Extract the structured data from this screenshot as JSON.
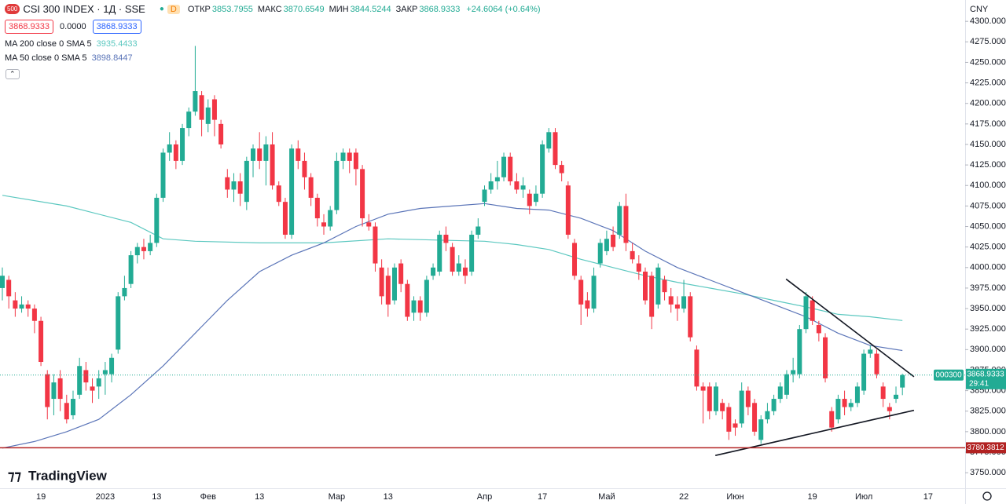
{
  "chart_data": {
    "type": "candlestick",
    "title": "CSI 300 INDEX · 1Д · SSE",
    "badge": "D",
    "ohlc_legend": [
      {
        "label": "ОТКР",
        "value": "3853.7955"
      },
      {
        "label": "МАКС",
        "value": "3870.6549"
      },
      {
        "label": "МИН",
        "value": "3844.5244"
      },
      {
        "label": "ЗАКР",
        "value": "3868.9333"
      }
    ],
    "change": "+24.6064 (+0.64%)",
    "boxes": [
      "3868.9333",
      "0.0000",
      "3868.9333"
    ],
    "currency": "CNY",
    "logo": "TradingView",
    "up_color": "#22ab94",
    "down_color": "#f23645",
    "grid": false,
    "ylim": [
      3731,
      4326
    ],
    "yticks": [
      {
        "value": 3750,
        "label": "3750.0000"
      },
      {
        "value": 3775,
        "label": "3775.0000"
      },
      {
        "value": 3800,
        "label": "3800.0000"
      },
      {
        "value": 3825,
        "label": "3825.0000"
      },
      {
        "value": 3850,
        "label": "3850.0000"
      },
      {
        "value": 3875,
        "label": "3875.0000"
      },
      {
        "value": 3900,
        "label": "3900.0000"
      },
      {
        "value": 3925,
        "label": "3925.0000"
      },
      {
        "value": 3950,
        "label": "3950.0000"
      },
      {
        "value": 3975,
        "label": "3975.0000"
      },
      {
        "value": 4000,
        "label": "4000.0000"
      },
      {
        "value": 4025,
        "label": "4025.0000"
      },
      {
        "value": 4050,
        "label": "4050.0000"
      },
      {
        "value": 4075,
        "label": "4075.0000"
      },
      {
        "value": 4100,
        "label": "4100.0000"
      },
      {
        "value": 4125,
        "label": "4125.0000"
      },
      {
        "value": 4150,
        "label": "4150.0000"
      },
      {
        "value": 4175,
        "label": "4175.0000"
      },
      {
        "value": 4200,
        "label": "4200.0000"
      },
      {
        "value": 4225,
        "label": "4225.0000"
      },
      {
        "value": 4250,
        "label": "4250.0000"
      },
      {
        "value": 4275,
        "label": "4275.0000"
      },
      {
        "value": 4300,
        "label": "4300.0000"
      }
    ],
    "categories": [
      null,
      null,
      null,
      null,
      null,
      null,
      "19",
      null,
      null,
      null,
      null,
      null,
      null,
      null,
      null,
      null,
      "2023",
      null,
      null,
      null,
      null,
      null,
      null,
      null,
      "13",
      null,
      null,
      null,
      null,
      null,
      null,
      null,
      "Фев",
      null,
      null,
      null,
      null,
      null,
      null,
      null,
      "13",
      null,
      null,
      null,
      null,
      null,
      null,
      null,
      null,
      null,
      null,
      null,
      "Мар",
      null,
      null,
      null,
      null,
      null,
      null,
      null,
      "13",
      null,
      null,
      null,
      null,
      null,
      null,
      null,
      null,
      null,
      null,
      null,
      null,
      null,
      null,
      "Апр",
      null,
      null,
      null,
      null,
      null,
      null,
      null,
      null,
      "17",
      null,
      null,
      null,
      null,
      null,
      null,
      null,
      null,
      null,
      "Май",
      null,
      null,
      null,
      null,
      null,
      null,
      null,
      null,
      null,
      null,
      null,
      "22",
      null,
      null,
      null,
      null,
      null,
      null,
      null,
      "Июн",
      null,
      null,
      null,
      null,
      null,
      null,
      null,
      null,
      null,
      null,
      null,
      "19",
      null,
      null,
      null,
      null,
      null,
      null,
      null,
      "Июл",
      null,
      null,
      null,
      null,
      null,
      null,
      null,
      null,
      null,
      "17"
    ],
    "open": [
      3975,
      3985,
      3960,
      3950,
      3955,
      3950,
      3935,
      3870,
      3840,
      3865,
      3835,
      3820,
      3845,
      3875,
      3855,
      3855,
      3870,
      3870,
      3900,
      3965,
      3980,
      4015,
      4025,
      4020,
      4030,
      4085,
      4140,
      4150,
      4130,
      4170,
      4190,
      4210,
      4175,
      4205,
      4175,
      4110,
      4095,
      4105,
      4080,
      4130,
      4145,
      4130,
      4150,
      4100,
      4080,
      4040,
      4145,
      4130,
      4110,
      4085,
      4055,
      4050,
      4070,
      4130,
      4140,
      4140,
      4120,
      4055,
      4050,
      4000,
      3990,
      3960,
      4005,
      3980,
      3945,
      3960,
      3945,
      3990,
      3995,
      4040,
      4025,
      3995,
      4000,
      3995,
      4040,
      4080,
      4095,
      4105,
      4110,
      4135,
      4105,
      4095,
      4090,
      4080,
      4090,
      4145,
      4165,
      4125,
      4100,
      4030,
      3985,
      3960,
      3950,
      4005,
      4020,
      4040,
      4040,
      4075,
      4020,
      4005,
      3995,
      3990,
      3955,
      3985,
      3965,
      3955,
      3950,
      3965,
      3900,
      3855,
      3855,
      3825,
      3835,
      3830,
      3810,
      3810,
      3850,
      3835,
      3790,
      3815,
      3825,
      3840,
      3845,
      3870,
      3870,
      3925,
      3960,
      3930,
      3915,
      3825,
      3815,
      3840,
      3830,
      3835,
      3850,
      3895,
      3895,
      3855,
      3830,
      3840,
      3853.7955,
      null,
      null,
      null,
      null
    ],
    "high": [
      4000,
      3990,
      3970,
      3965,
      3960,
      3955,
      3940,
      3875,
      3870,
      3875,
      3845,
      3850,
      3890,
      3885,
      3865,
      3875,
      3885,
      3895,
      3970,
      3990,
      4020,
      4030,
      4035,
      4040,
      4090,
      4145,
      4165,
      4155,
      4175,
      4195,
      4270,
      4215,
      4205,
      4210,
      4180,
      4120,
      4115,
      4115,
      4135,
      4150,
      4165,
      4160,
      4165,
      4105,
      4085,
      4150,
      4155,
      4140,
      4115,
      4090,
      4065,
      4075,
      4140,
      4145,
      4145,
      4145,
      4125,
      4065,
      4055,
      4010,
      4000,
      4005,
      4010,
      3985,
      3965,
      3965,
      3990,
      4005,
      4045,
      4050,
      4030,
      4015,
      4010,
      4045,
      4060,
      4100,
      4115,
      4130,
      4140,
      4140,
      4115,
      4110,
      4095,
      4100,
      4155,
      4170,
      4170,
      4130,
      4105,
      4035,
      3990,
      3970,
      4000,
      4035,
      4045,
      4050,
      4080,
      4090,
      4030,
      4015,
      4000,
      3995,
      4005,
      3990,
      3975,
      3965,
      3985,
      3970,
      3905,
      3860,
      3860,
      3860,
      3840,
      3835,
      3815,
      3860,
      3855,
      3840,
      3820,
      3835,
      3845,
      3860,
      3875,
      3890,
      3930,
      3970,
      3965,
      3935,
      3920,
      3830,
      3845,
      3850,
      3840,
      3860,
      3900,
      3905,
      3900,
      3860,
      3835,
      3855,
      3870.6549,
      null,
      null,
      null,
      null
    ],
    "low": [
      3960,
      3950,
      3940,
      3945,
      3940,
      3920,
      3880,
      3815,
      3820,
      3825,
      3810,
      3815,
      3840,
      3850,
      3835,
      3840,
      3845,
      3860,
      3895,
      3960,
      3975,
      4005,
      4010,
      4015,
      4025,
      4080,
      4130,
      4120,
      4125,
      4160,
      4185,
      4160,
      4165,
      4160,
      4145,
      4085,
      4080,
      4075,
      4070,
      4110,
      4120,
      4100,
      4095,
      4075,
      4035,
      4035,
      4120,
      4095,
      4075,
      4050,
      4040,
      4045,
      4065,
      4120,
      4115,
      4100,
      4050,
      4045,
      3995,
      3955,
      3940,
      3955,
      3970,
      3935,
      3935,
      3935,
      3940,
      3985,
      3990,
      4020,
      3990,
      3990,
      3980,
      3990,
      4035,
      4075,
      4090,
      4095,
      4105,
      4100,
      4090,
      4085,
      4065,
      4075,
      4085,
      4140,
      4120,
      4105,
      4035,
      3985,
      3930,
      3940,
      3945,
      4000,
      4015,
      4020,
      4035,
      4020,
      4005,
      3985,
      3955,
      3925,
      3950,
      3960,
      3945,
      3935,
      3945,
      3910,
      3850,
      3810,
      3815,
      3820,
      3815,
      3790,
      3795,
      3805,
      3820,
      3795,
      3785,
      3810,
      3820,
      3835,
      3840,
      3860,
      3865,
      3920,
      3930,
      3910,
      3860,
      3800,
      3810,
      3820,
      3825,
      3830,
      3845,
      3890,
      3865,
      3830,
      3815,
      3835,
      3844.5244,
      null,
      null,
      null,
      null
    ],
    "close": [
      3990,
      3965,
      3950,
      3955,
      3950,
      3935,
      3885,
      3830,
      3860,
      3840,
      3815,
      3840,
      3880,
      3860,
      3850,
      3865,
      3875,
      3890,
      3965,
      3975,
      4015,
      4025,
      4020,
      4030,
      4085,
      4140,
      4150,
      4130,
      4170,
      4190,
      4215,
      4180,
      4195,
      4180,
      4150,
      4095,
      4105,
      4090,
      4130,
      4145,
      4130,
      4150,
      4100,
      4080,
      4040,
      4145,
      4130,
      4110,
      4085,
      4060,
      4050,
      4070,
      4130,
      4140,
      4130,
      4120,
      4060,
      4050,
      4005,
      3965,
      3955,
      4000,
      3980,
      3940,
      3960,
      3945,
      3985,
      4000,
      4040,
      4030,
      3995,
      4005,
      3990,
      4040,
      4050,
      4095,
      4105,
      4110,
      4135,
      4105,
      4095,
      4100,
      4075,
      4090,
      4150,
      4165,
      4125,
      4115,
      4040,
      3990,
      3955,
      3950,
      3990,
      4030,
      4035,
      4025,
      4075,
      4030,
      4010,
      3995,
      3960,
      3940,
      4000,
      3970,
      3955,
      3950,
      3965,
      3915,
      3855,
      3850,
      3825,
      3855,
      3825,
      3800,
      3805,
      3850,
      3830,
      3800,
      3815,
      3825,
      3840,
      3855,
      3870,
      3875,
      3925,
      3965,
      3935,
      3920,
      3865,
      3805,
      3840,
      3830,
      3835,
      3855,
      3895,
      3900,
      3870,
      3840,
      3825,
      3845,
      3868.9333,
      null,
      null,
      null,
      null
    ],
    "moving_averages": [
      {
        "name": "MA 200 close 0 SMA 5",
        "value_label": "3935.4433",
        "color": "#5cc8c0",
        "x": [
          0,
          10,
          20,
          25,
          30,
          40,
          50,
          60,
          70,
          75,
          80,
          85,
          90,
          95,
          100,
          105,
          110,
          115,
          120,
          125,
          130,
          135,
          140
        ],
        "values": [
          4088,
          4075,
          4055,
          4035,
          4032,
          4030,
          4030,
          4035,
          4033,
          4032,
          4028,
          4022,
          4010,
          4000,
          3990,
          3982,
          3975,
          3968,
          3960,
          3952,
          3943,
          3940,
          3935.4433
        ]
      },
      {
        "name": "MA 50 close 0 SMA 5",
        "value_label": "3898.8447",
        "color": "#5b75b8",
        "x": [
          0,
          5,
          10,
          15,
          20,
          25,
          30,
          35,
          40,
          45,
          50,
          55,
          60,
          65,
          70,
          75,
          80,
          85,
          90,
          95,
          100,
          105,
          110,
          115,
          120,
          125,
          130,
          135,
          140
        ],
        "values": [
          3780,
          3788,
          3800,
          3815,
          3845,
          3880,
          3920,
          3960,
          3995,
          4015,
          4030,
          4050,
          4065,
          4072,
          4075,
          4078,
          4072,
          4070,
          4060,
          4045,
          4020,
          4000,
          3985,
          3970,
          3955,
          3940,
          3920,
          3905,
          3898.8447
        ]
      }
    ],
    "horizontal_line": {
      "value": 3780.3812,
      "label": "3780.3812",
      "color": "#b22222"
    },
    "trendlines": [
      {
        "x": [
          121.9,
          141.8
        ],
        "values": [
          3986,
          3867
        ]
      },
      {
        "x": [
          110.9,
          141.8
        ],
        "values": [
          3771,
          3826
        ]
      }
    ],
    "price_tag": {
      "symbol": "000300",
      "value": "3868.9333",
      "countdown": "29:41"
    }
  }
}
